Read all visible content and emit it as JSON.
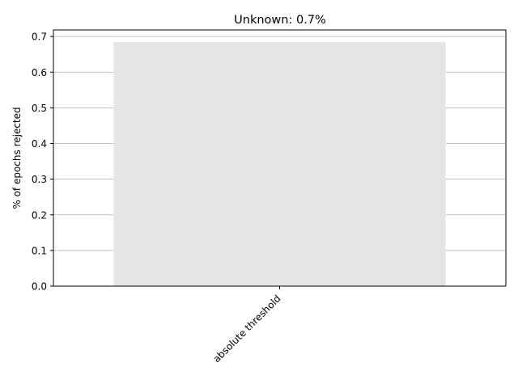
{
  "chart_data": {
    "type": "bar",
    "title": "Unknown: 0.7%",
    "xlabel": "",
    "ylabel": "% of epochs rejected",
    "categories": [
      "absolute threshold"
    ],
    "values": [
      0.684
    ],
    "ylim": [
      0,
      0.7185
    ],
    "yticks": [
      0.0,
      0.1,
      0.2,
      0.3,
      0.4,
      0.5,
      0.6,
      0.7
    ],
    "grid": "horizontal",
    "bar_color": "#e5e5e5",
    "grid_color": "#b0b0b0"
  }
}
